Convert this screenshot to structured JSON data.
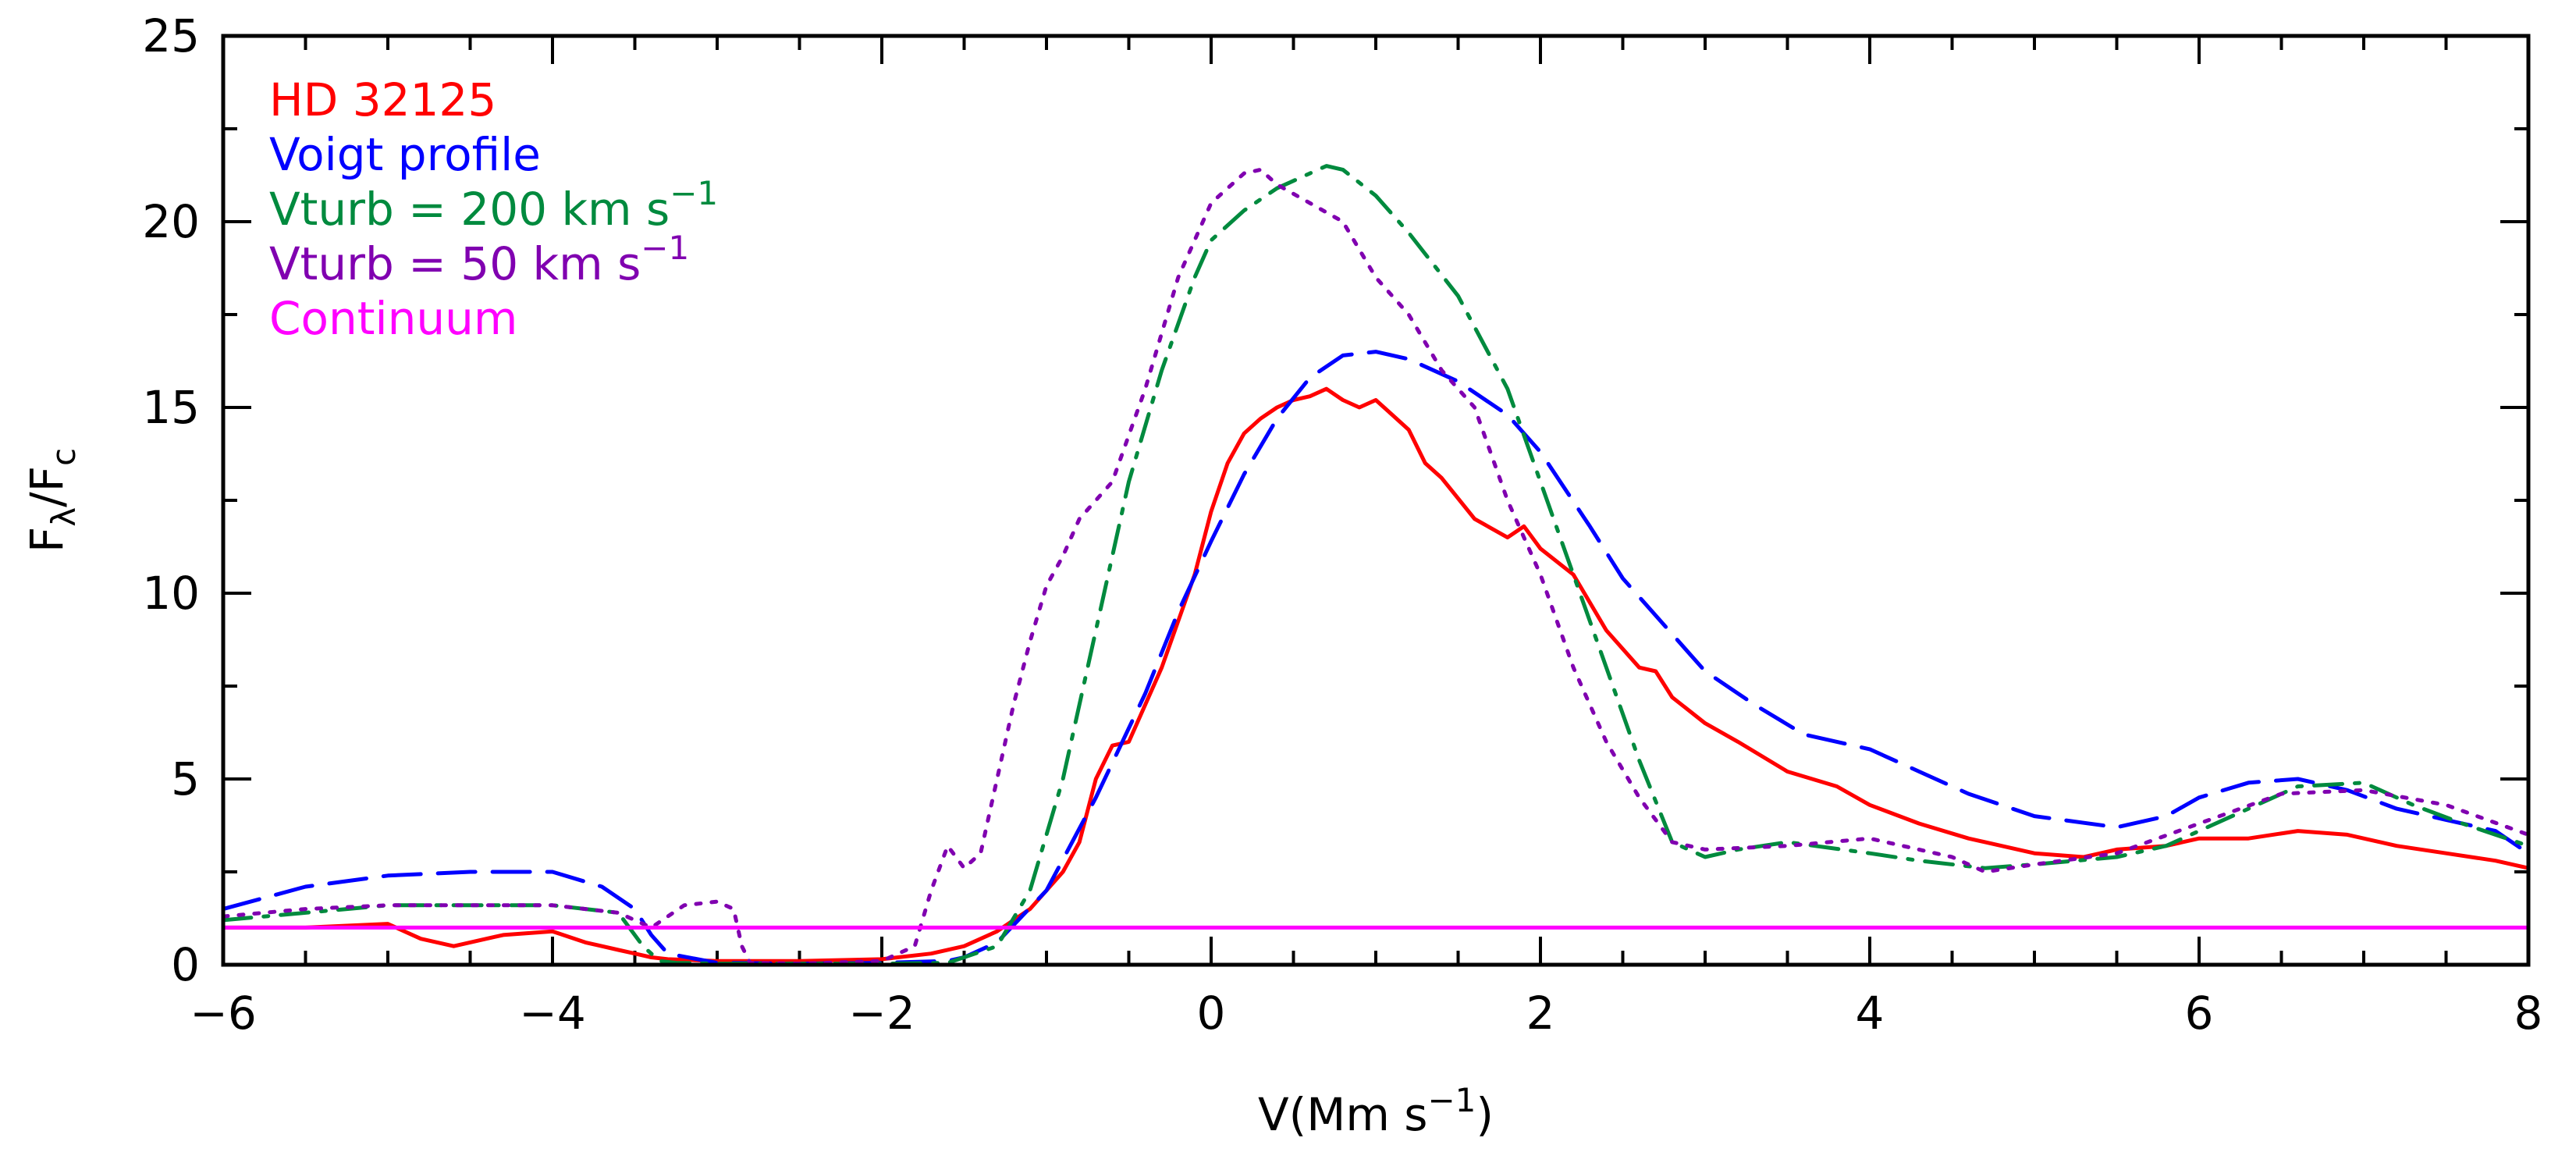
{
  "chart_data": {
    "type": "line",
    "xlabel_main": "V(Mm s",
    "xlabel_sup": "−1",
    "xlabel_end": ")",
    "ylabel_main": "F",
    "ylabel_sub1": "λ",
    "ylabel_mid": "/F",
    "ylabel_sub2": "c",
    "xlim": [
      -6,
      8
    ],
    "ylim": [
      0,
      25
    ],
    "xticks": [
      -6,
      -4,
      -2,
      0,
      2,
      4,
      6,
      8
    ],
    "xtick_labels": [
      "−6",
      "−4",
      "−2",
      "0",
      "2",
      "4",
      "6",
      "8"
    ],
    "xminor_step": 0.5,
    "yticks": [
      0,
      5,
      10,
      15,
      20,
      25
    ],
    "ytick_labels": [
      "0",
      "5",
      "10",
      "15",
      "20",
      "25"
    ],
    "yminor_step": 2.5,
    "legend_position": "top-left",
    "series": [
      {
        "name": "HD 32125",
        "legend_main": "HD 32125",
        "legend_sup": "",
        "color": "#ff0000",
        "style": "solid",
        "x": [
          -6.0,
          -5.5,
          -5.0,
          -4.8,
          -4.6,
          -4.3,
          -4.0,
          -3.8,
          -3.6,
          -3.5,
          -3.4,
          -3.3,
          -3.0,
          -2.5,
          -2.0,
          -1.7,
          -1.5,
          -1.3,
          -1.1,
          -0.9,
          -0.8,
          -0.7,
          -0.6,
          -0.5,
          -0.3,
          -0.1,
          0.0,
          0.1,
          0.2,
          0.3,
          0.4,
          0.5,
          0.6,
          0.7,
          0.8,
          0.9,
          1.0,
          1.1,
          1.2,
          1.3,
          1.4,
          1.6,
          1.8,
          1.9,
          2.0,
          2.2,
          2.4,
          2.6,
          2.7,
          2.8,
          3.0,
          3.2,
          3.5,
          3.8,
          4.0,
          4.3,
          4.6,
          5.0,
          5.3,
          5.5,
          5.8,
          6.0,
          6.3,
          6.6,
          6.9,
          7.2,
          7.5,
          7.8,
          8.0
        ],
        "y": [
          1.0,
          1.0,
          1.1,
          0.7,
          0.5,
          0.8,
          0.9,
          0.6,
          0.4,
          0.3,
          0.2,
          0.15,
          0.1,
          0.1,
          0.15,
          0.3,
          0.5,
          0.9,
          1.5,
          2.5,
          3.3,
          5.0,
          5.9,
          6.0,
          8.0,
          10.5,
          12.2,
          13.5,
          14.3,
          14.7,
          15.0,
          15.2,
          15.3,
          15.5,
          15.2,
          15.0,
          15.2,
          14.8,
          14.4,
          13.5,
          13.1,
          12.0,
          11.5,
          11.8,
          11.2,
          10.5,
          9.0,
          8.0,
          7.9,
          7.2,
          6.5,
          6.0,
          5.2,
          4.8,
          4.3,
          3.8,
          3.4,
          3.0,
          2.9,
          3.1,
          3.2,
          3.4,
          3.4,
          3.6,
          3.5,
          3.2,
          3.0,
          2.8,
          2.6
        ]
      },
      {
        "name": "Voigt profile",
        "legend_main": "Voigt profile",
        "legend_sup": "",
        "color": "#0000ff",
        "style": "dashed",
        "x": [
          -6.0,
          -5.5,
          -5.0,
          -4.5,
          -4.0,
          -3.7,
          -3.5,
          -3.4,
          -3.3,
          -3.0,
          -2.5,
          -2.0,
          -1.6,
          -1.5,
          -1.3,
          -1.0,
          -0.7,
          -0.4,
          -0.2,
          0.0,
          0.2,
          0.4,
          0.6,
          0.8,
          1.0,
          1.2,
          1.5,
          1.8,
          2.0,
          2.3,
          2.5,
          2.8,
          3.0,
          3.3,
          3.6,
          4.0,
          4.3,
          4.6,
          5.0,
          5.5,
          5.8,
          6.0,
          6.3,
          6.6,
          6.9,
          7.2,
          7.5,
          7.8,
          8.0
        ],
        "y": [
          1.5,
          2.1,
          2.4,
          2.5,
          2.5,
          2.1,
          1.5,
          0.8,
          0.3,
          0.05,
          0.03,
          0.05,
          0.1,
          0.2,
          0.6,
          2.0,
          4.5,
          7.3,
          9.5,
          11.4,
          13.2,
          14.7,
          15.8,
          16.4,
          16.5,
          16.3,
          15.7,
          14.8,
          13.8,
          11.8,
          10.4,
          8.9,
          7.9,
          7.0,
          6.2,
          5.8,
          5.2,
          4.6,
          4.0,
          3.7,
          4.0,
          4.5,
          4.9,
          5.0,
          4.7,
          4.2,
          3.9,
          3.6,
          3.0
        ]
      },
      {
        "name": "Vturb = 200 km s-1",
        "legend_main": "Vturb = 200 km s",
        "legend_sup": "−1",
        "color": "#008a3e",
        "style": "dashdot",
        "x": [
          -6.0,
          -5.5,
          -5.0,
          -4.5,
          -4.0,
          -3.6,
          -3.45,
          -3.35,
          -3.25,
          -3.0,
          -2.5,
          -2.0,
          -1.6,
          -1.3,
          -1.1,
          -0.9,
          -0.7,
          -0.5,
          -0.3,
          -0.1,
          0.0,
          0.2,
          0.4,
          0.6,
          0.7,
          0.8,
          1.0,
          1.2,
          1.5,
          1.8,
          2.0,
          2.2,
          2.4,
          2.6,
          2.8,
          3.0,
          3.2,
          3.5,
          4.0,
          4.3,
          4.7,
          5.0,
          5.5,
          5.8,
          6.0,
          6.3,
          6.6,
          7.0,
          7.3,
          7.6,
          8.0
        ],
        "y": [
          1.2,
          1.4,
          1.6,
          1.6,
          1.6,
          1.4,
          0.5,
          0.1,
          0.05,
          0.03,
          0.03,
          0.03,
          0.05,
          0.5,
          2.0,
          5.0,
          9.0,
          13.0,
          16.0,
          18.5,
          19.5,
          20.3,
          20.9,
          21.3,
          21.5,
          21.4,
          20.7,
          19.7,
          18.0,
          15.5,
          13.0,
          10.5,
          8.0,
          5.5,
          3.3,
          2.9,
          3.1,
          3.3,
          3.0,
          2.8,
          2.6,
          2.7,
          2.9,
          3.2,
          3.6,
          4.2,
          4.8,
          4.9,
          4.3,
          3.8,
          3.2
        ]
      },
      {
        "name": "Vturb = 50 km s-1",
        "legend_main": "Vturb = 50 km s",
        "legend_sup": "−1",
        "color": "#8000b0",
        "style": "dotted",
        "x": [
          -6.0,
          -5.5,
          -5.0,
          -4.5,
          -4.0,
          -3.6,
          -3.4,
          -3.3,
          -3.2,
          -3.0,
          -2.9,
          -2.85,
          -2.8,
          -2.5,
          -2.0,
          -1.8,
          -1.7,
          -1.6,
          -1.5,
          -1.4,
          -1.3,
          -1.2,
          -1.1,
          -1.0,
          -0.9,
          -0.8,
          -0.6,
          -0.4,
          -0.2,
          0.0,
          0.2,
          0.3,
          0.4,
          0.6,
          0.8,
          1.0,
          1.2,
          1.4,
          1.6,
          1.8,
          2.0,
          2.2,
          2.4,
          2.6,
          2.8,
          3.0,
          3.5,
          4.0,
          4.5,
          4.7,
          5.0,
          5.5,
          6.0,
          6.5,
          7.0,
          7.5,
          8.0
        ],
        "y": [
          1.3,
          1.5,
          1.6,
          1.6,
          1.6,
          1.4,
          1.0,
          1.3,
          1.6,
          1.7,
          1.5,
          0.5,
          0.05,
          0.03,
          0.1,
          0.5,
          2.0,
          3.2,
          2.6,
          3.0,
          5.0,
          7.0,
          8.7,
          10.2,
          11.0,
          12.0,
          13.0,
          15.5,
          18.5,
          20.5,
          21.3,
          21.4,
          21.0,
          20.5,
          20.0,
          18.5,
          17.5,
          16.0,
          15.0,
          12.5,
          10.5,
          8.0,
          6.0,
          4.5,
          3.3,
          3.1,
          3.2,
          3.4,
          2.9,
          2.5,
          2.7,
          3.0,
          3.8,
          4.6,
          4.7,
          4.3,
          3.5
        ]
      },
      {
        "name": "Continuum",
        "legend_main": "Continuum",
        "legend_sup": "",
        "color": "#ff00ff",
        "style": "solid",
        "x": [
          -6.0,
          8.0
        ],
        "y": [
          1.0,
          1.0
        ]
      }
    ]
  }
}
